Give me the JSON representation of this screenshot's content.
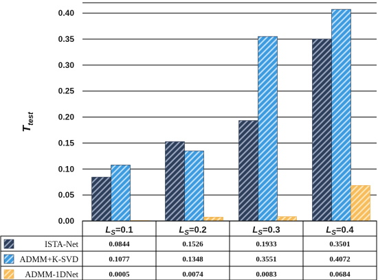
{
  "chart_data": {
    "type": "bar",
    "ylabel": "T",
    "ylabel_sub": "test",
    "ylim": [
      0,
      0.42
    ],
    "yticks": [
      "0.00",
      "0.05",
      "0.10",
      "0.15",
      "0.20",
      "0.25",
      "0.30",
      "0.35",
      "0.40"
    ],
    "ytick_values": [
      0,
      0.05,
      0.1,
      0.15,
      0.2,
      0.25,
      0.3,
      0.35,
      0.4
    ],
    "grid": "horizontal",
    "category_prefix": "L",
    "category_sub": "S",
    "categories": [
      "=0.1",
      "=0.2",
      "=0.3",
      "=0.4"
    ],
    "series": [
      {
        "name": "ISTA-Net",
        "values": [
          0.0844,
          0.1526,
          0.1933,
          0.3501
        ],
        "labels": [
          "0.0844",
          "0.1526",
          "0.1933",
          "0.3501"
        ],
        "color": "#2e3f5c",
        "stripe": "#9aa6bd"
      },
      {
        "name": "ADMM+K-SVD",
        "values": [
          0.1077,
          0.1348,
          0.3551,
          0.4072
        ],
        "labels": [
          "0.1077",
          "0.1348",
          "0.3551",
          "0.4072"
        ],
        "color": "#3d9be0",
        "stripe": "#bfe0fa"
      },
      {
        "name": "ADMM-1DNet",
        "values": [
          0.0005,
          0.0074,
          0.0083,
          0.0684
        ],
        "labels": [
          "0.0005",
          "0.0074",
          "0.0083",
          "0.0684"
        ],
        "color": "#f7bd5c",
        "stripe": "#fde6ba"
      }
    ],
    "legend_placement": "data-table"
  }
}
